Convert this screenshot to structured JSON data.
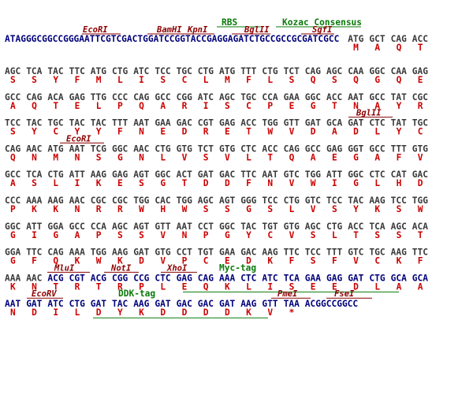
{
  "colors": {
    "dna": "#3a3a3a",
    "dna_vector": "#00007a",
    "aa": "#cc0000",
    "enzyme": "#8b0000",
    "feature": "#0a7a0a"
  },
  "header": {
    "features": [
      "RBS",
      "Kozac Consensus"
    ],
    "sites": [
      "EcoRI",
      "BamHI",
      "KpnI",
      "BglII",
      "SgfI"
    ],
    "vector_seq": "ATAGGGCGGCCGGGAATTCGTCGACTGGATCCGGTACCGAGGAGATCTGCCGCCGCGATCGCC",
    "codons": [
      "ATG",
      "GCT",
      "CAG",
      "ACC"
    ],
    "aa": [
      "M",
      "A",
      "Q",
      "T"
    ]
  },
  "rows": [
    {
      "codons": [
        "AGC",
        "TCA",
        "TAC",
        "TTC",
        "ATG",
        "CTG",
        "ATC",
        "TCC",
        "TGC",
        "CTG",
        "ATG",
        "TTT",
        "CTG",
        "TCT",
        "CAG",
        "AGC",
        "CAA",
        "GGC",
        "CAA",
        "GAG"
      ],
      "aa": [
        "S",
        "S",
        "Y",
        "F",
        "M",
        "L",
        "I",
        "S",
        "C",
        "L",
        "M",
        "F",
        "L",
        "S",
        "Q",
        "S",
        "Q",
        "G",
        "Q",
        "E"
      ]
    },
    {
      "codons": [
        "GCC",
        "CAG",
        "ACA",
        "GAG",
        "TTG",
        "CCC",
        "CAG",
        "GCC",
        "CGG",
        "ATC",
        "AGC",
        "TGC",
        "CCA",
        "GAA",
        "GGC",
        "ACC",
        "AAT",
        "GCC",
        "TAT",
        "CGC"
      ],
      "aa": [
        "A",
        "Q",
        "T",
        "E",
        "L",
        "P",
        "Q",
        "A",
        "R",
        "I",
        "S",
        "C",
        "P",
        "E",
        "G",
        "T",
        "N",
        "A",
        "Y",
        "R"
      ]
    },
    {
      "codons": [
        "TCC",
        "TAC",
        "TGC",
        "TAC",
        "TAC",
        "TTT",
        "AAT",
        "GAA",
        "GAC",
        "CGT",
        "GAG",
        "ACC",
        "TGG",
        "GTT",
        "GAT",
        "GCA",
        "GAT",
        "CTC",
        "TAT",
        "TGC"
      ],
      "aa": [
        "S",
        "Y",
        "C",
        "Y",
        "Y",
        "F",
        "N",
        "E",
        "D",
        "R",
        "E",
        "T",
        "W",
        "V",
        "D",
        "A",
        "D",
        "L",
        "Y",
        "C"
      ],
      "site": "BglII"
    },
    {
      "codons": [
        "CAG",
        "AAC",
        "ATG",
        "AAT",
        "TCG",
        "GGC",
        "AAC",
        "CTG",
        "GTG",
        "TCT",
        "GTG",
        "CTC",
        "ACC",
        "CAG",
        "GCC",
        "GAG",
        "GGT",
        "GCC",
        "TTT",
        "GTG"
      ],
      "aa": [
        "Q",
        "N",
        "M",
        "N",
        "S",
        "G",
        "N",
        "L",
        "V",
        "S",
        "V",
        "L",
        "T",
        "Q",
        "A",
        "E",
        "G",
        "A",
        "F",
        "V"
      ],
      "site": "EcoRI"
    },
    {
      "codons": [
        "GCC",
        "TCA",
        "CTG",
        "ATT",
        "AAG",
        "GAG",
        "AGT",
        "GGC",
        "ACT",
        "GAT",
        "GAC",
        "TTC",
        "AAT",
        "GTC",
        "TGG",
        "ATT",
        "GGC",
        "CTC",
        "CAT",
        "GAC"
      ],
      "aa": [
        "A",
        "S",
        "L",
        "I",
        "K",
        "E",
        "S",
        "G",
        "T",
        "D",
        "D",
        "F",
        "N",
        "V",
        "W",
        "I",
        "G",
        "L",
        "H",
        "D"
      ]
    },
    {
      "codons": [
        "CCC",
        "AAA",
        "AAG",
        "AAC",
        "CGC",
        "CGC",
        "TGG",
        "CAC",
        "TGG",
        "AGC",
        "AGT",
        "GGG",
        "TCC",
        "CTG",
        "GTC",
        "TCC",
        "TAC",
        "AAG",
        "TCC",
        "TGG"
      ],
      "aa": [
        "P",
        "K",
        "K",
        "N",
        "R",
        "R",
        "W",
        "H",
        "W",
        "S",
        "S",
        "G",
        "S",
        "L",
        "V",
        "S",
        "Y",
        "K",
        "S",
        "W"
      ]
    },
    {
      "codons": [
        "GGC",
        "ATT",
        "GGA",
        "GCC",
        "CCA",
        "AGC",
        "AGT",
        "GTT",
        "AAT",
        "CCT",
        "GGC",
        "TAC",
        "TGT",
        "GTG",
        "AGC",
        "CTG",
        "ACC",
        "TCA",
        "AGC",
        "ACA"
      ],
      "aa": [
        "G",
        "I",
        "G",
        "A",
        "P",
        "S",
        "S",
        "V",
        "N",
        "P",
        "G",
        "Y",
        "C",
        "V",
        "S",
        "L",
        "T",
        "S",
        "S",
        "T"
      ]
    },
    {
      "codons": [
        "GGA",
        "TTC",
        "CAG",
        "AAA",
        "TGG",
        "AAG",
        "GAT",
        "GTG",
        "CCT",
        "TGT",
        "GAA",
        "GAC",
        "AAG",
        "TTC",
        "TCC",
        "TTT",
        "GTC",
        "TGC",
        "AAG",
        "TTC"
      ],
      "aa": [
        "G",
        "F",
        "Q",
        "K",
        "W",
        "K",
        "D",
        "V",
        "P",
        "C",
        "E",
        "D",
        "K",
        "F",
        "S",
        "F",
        "V",
        "C",
        "K",
        "F"
      ]
    },
    {
      "codons": [
        "AAA",
        "AAC",
        "ACG",
        "CGT",
        "ACG",
        "CGG",
        "CCG",
        "CTC",
        "GAG",
        "CAG",
        "AAA",
        "CTC",
        "ATC",
        "TCA",
        "GAA",
        "GAG",
        "GAT",
        "CTG",
        "GCA",
        "GCA"
      ],
      "aa": [
        "K",
        "N",
        "T",
        "R",
        "T",
        "R",
        "P",
        "L",
        "E",
        "Q",
        "K",
        "L",
        "I",
        "S",
        "E",
        "E",
        "D",
        "L",
        "A",
        "A"
      ],
      "sites": [
        "MluI",
        "NotI",
        "XhoI"
      ],
      "feature": "Myc-tag"
    },
    {
      "codons": [
        "AAT",
        "GAT",
        "ATC",
        "CTG",
        "GAT",
        "TAC",
        "AAG",
        "GAT",
        "GAC",
        "GAC",
        "GAT",
        "AAG",
        "GTT",
        "TAA"
      ],
      "aa": [
        "N",
        "D",
        "I",
        "L",
        "D",
        "Y",
        "K",
        "D",
        "D",
        "D",
        "D",
        "K",
        "V",
        "*"
      ],
      "tail": "ACGGCCGGCC",
      "sites": [
        "EcoRV",
        "PmeI",
        "FseI"
      ],
      "feature": "DDK-tag"
    }
  ]
}
